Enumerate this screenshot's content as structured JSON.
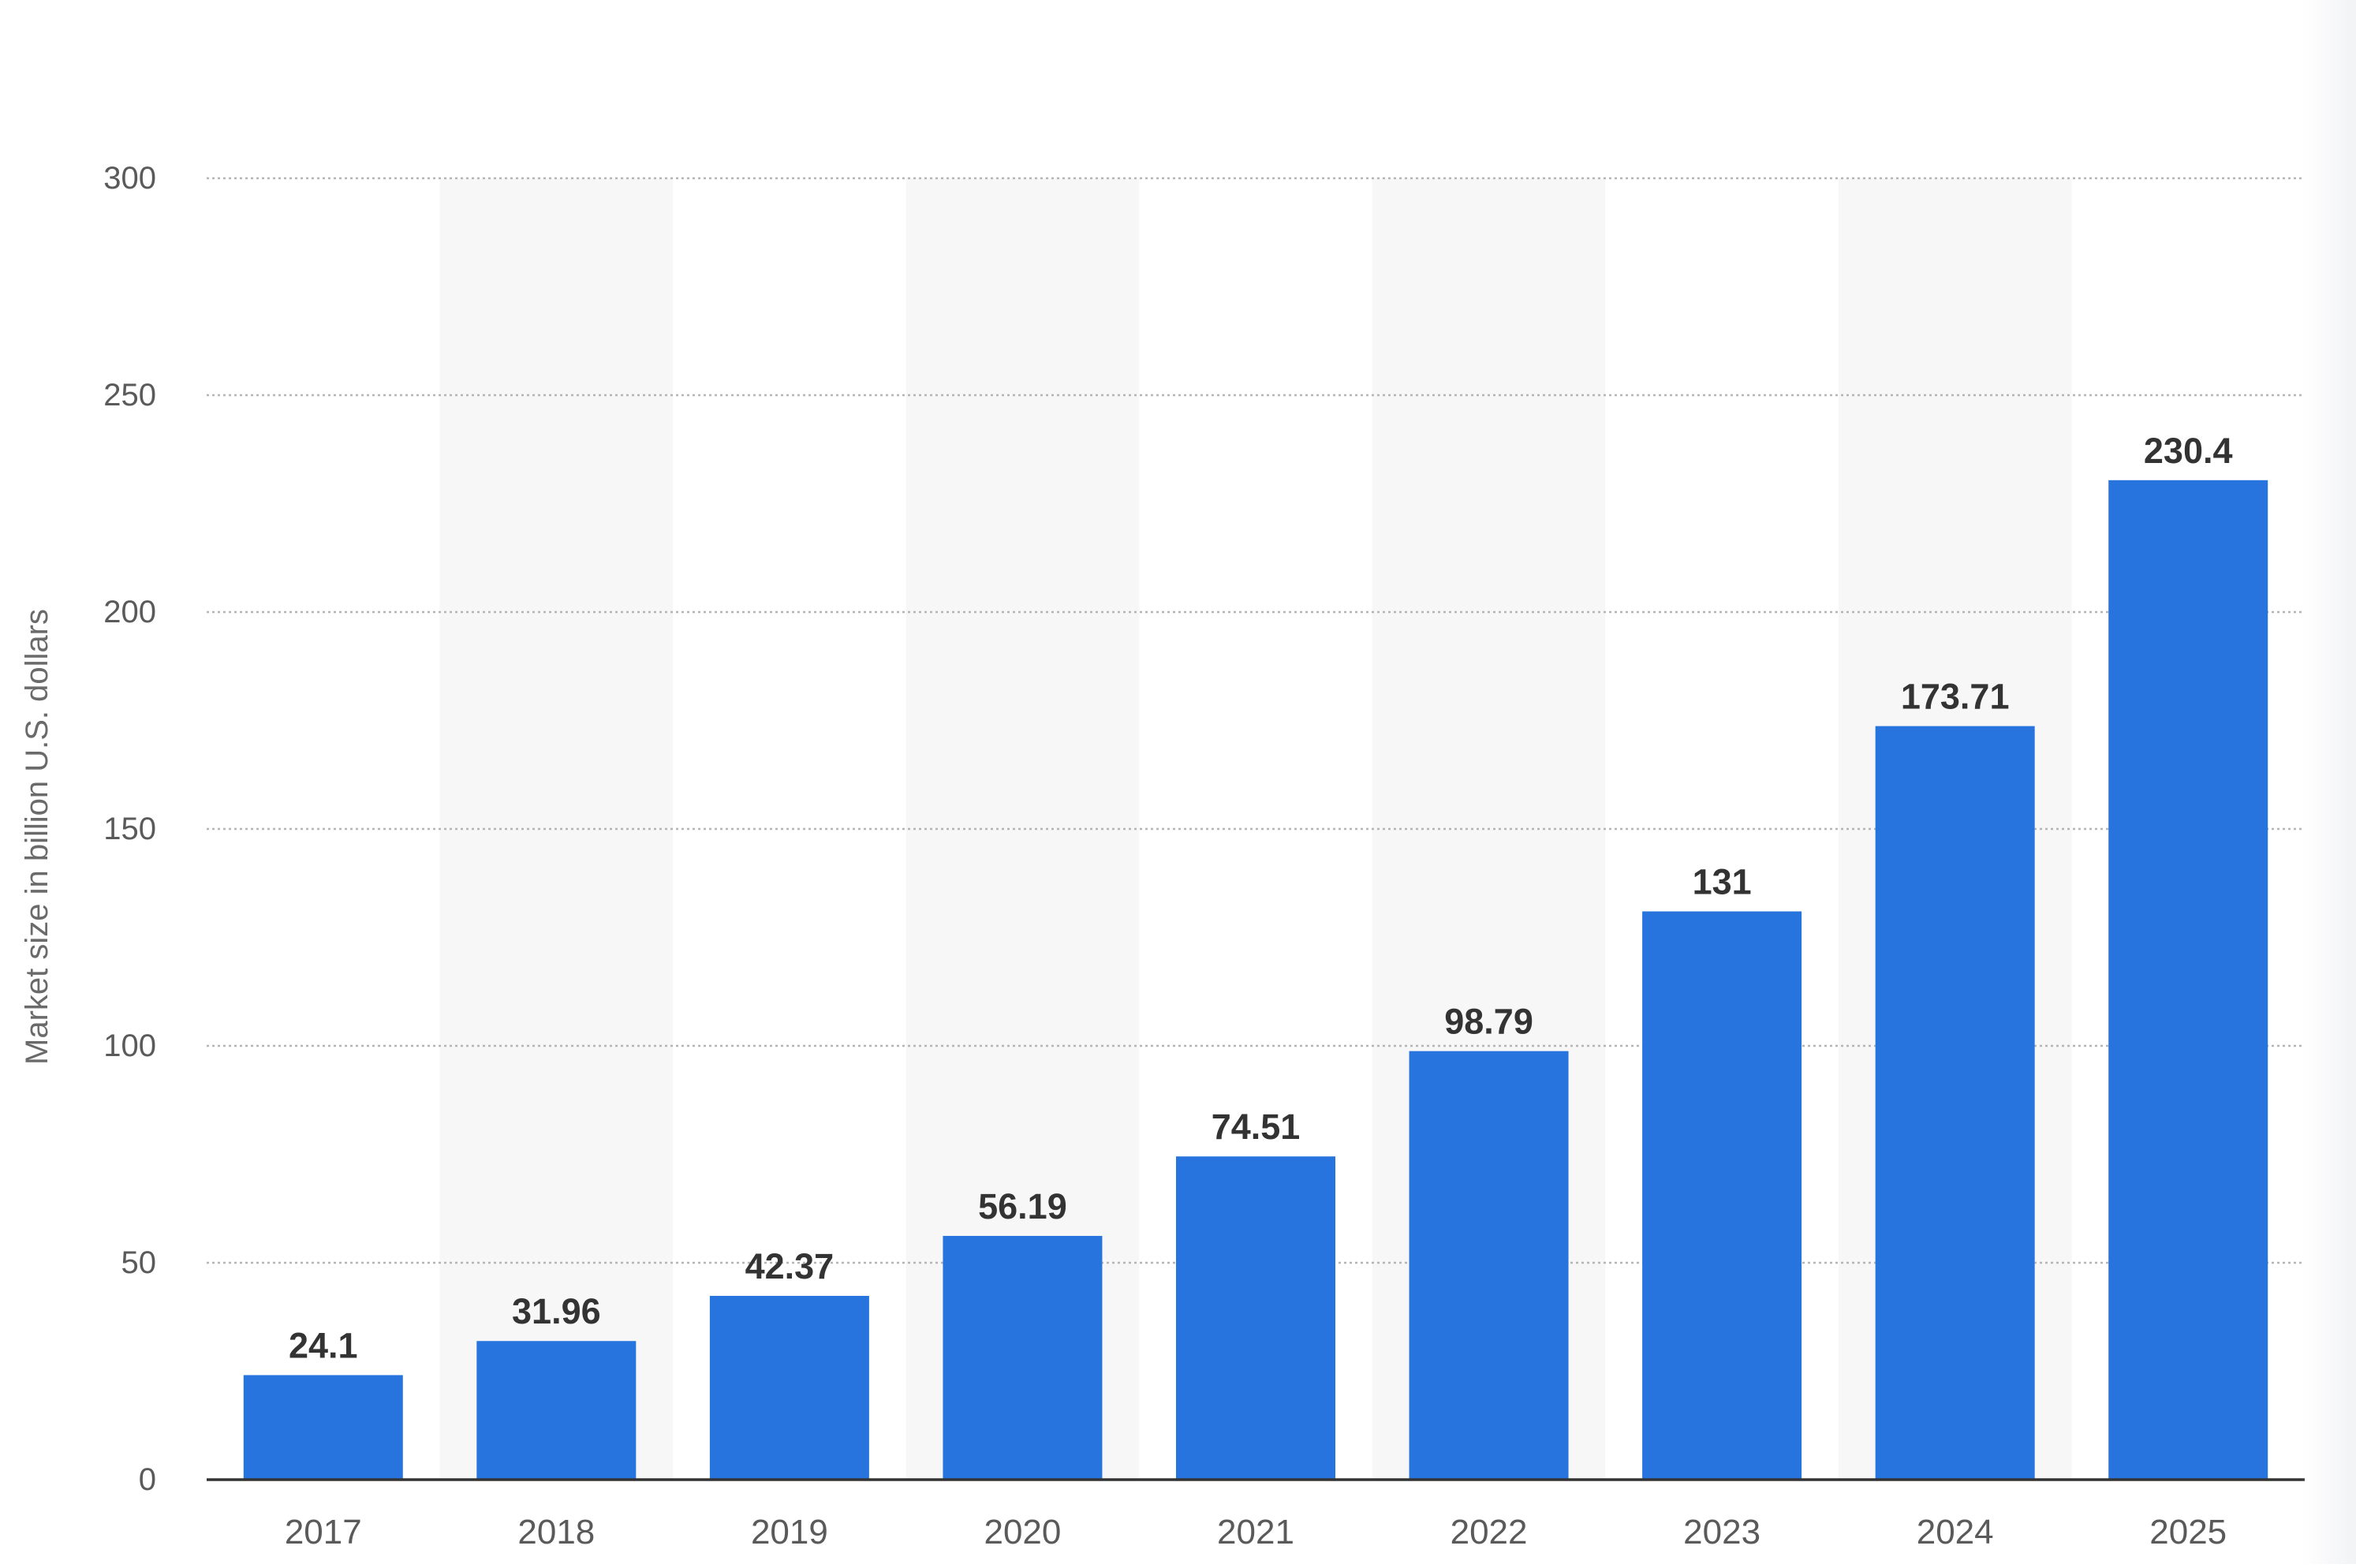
{
  "colors": {
    "bar": "#2874de",
    "grid": "#b5b5b5",
    "axis": "#333333",
    "band": "#f7f7f7"
  },
  "chart_data": {
    "type": "bar",
    "categories": [
      "2017",
      "2018",
      "2019",
      "2020",
      "2021",
      "2022",
      "2023",
      "2024",
      "2025"
    ],
    "values": [
      24.1,
      31.96,
      42.37,
      56.19,
      74.51,
      98.79,
      131,
      173.71,
      230.4
    ],
    "data_labels": [
      "24.1",
      "31.96",
      "42.37",
      "56.19",
      "74.51",
      "98.79",
      "131",
      "173.71",
      "230.4"
    ],
    "title": "",
    "xlabel": "",
    "ylabel": "Market size in billion U.S. dollars",
    "ylim": [
      0,
      300
    ],
    "yticks": [
      0,
      50,
      100,
      150,
      200,
      250,
      300
    ],
    "grid": true,
    "legend": "none"
  }
}
